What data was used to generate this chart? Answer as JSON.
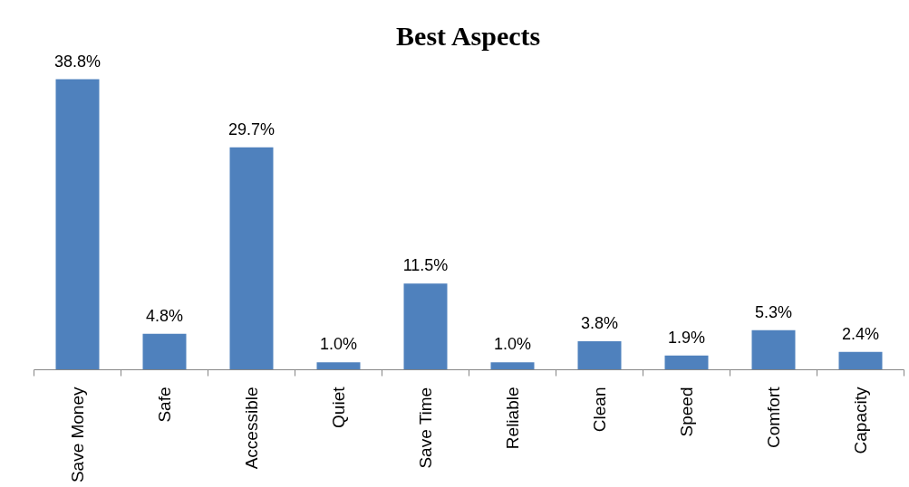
{
  "chart_data": {
    "type": "bar",
    "title": "Best Aspects",
    "categories": [
      "Save Money",
      "Safe",
      "Accessible",
      "Quiet",
      "Save Time",
      "Reliable",
      "Clean",
      "Speed",
      "Comfort",
      "Capacity"
    ],
    "values": [
      38.8,
      4.8,
      29.7,
      1.0,
      11.5,
      1.0,
      3.8,
      1.9,
      5.3,
      2.4
    ],
    "value_labels": [
      "38.8%",
      "4.8%",
      "29.7%",
      "1.0%",
      "11.5%",
      "1.0%",
      "3.8%",
      "1.9%",
      "5.3%",
      "2.4%"
    ],
    "color": "#4f81bd"
  }
}
